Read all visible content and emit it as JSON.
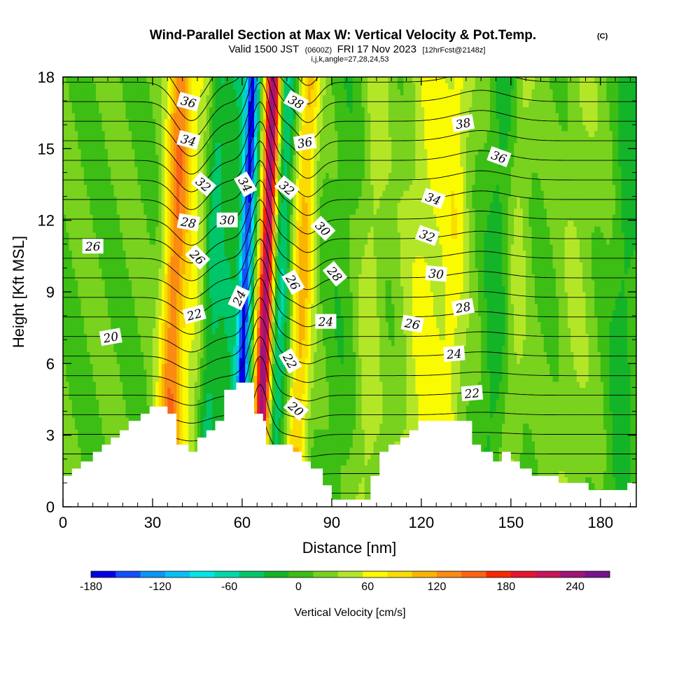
{
  "chart_data": {
    "type": "heatmap",
    "title": "Wind-Parallel Section at Max W: Vertical Velocity & Pot.Temp.",
    "title_tag": "(C)",
    "subtitle_main": "Valid 1500 JST",
    "subtitle_z": "(0600Z)",
    "subtitle_date": "FRI 17 Nov 2023",
    "subtitle_fcst": "[12hrFcst@2148z]",
    "subtitle2": "i,j,k,angle=27,28,24,53",
    "xlabel": "Distance [nm]",
    "ylabel": "Height [Kft MSL]",
    "xlim": [
      0,
      192
    ],
    "ylim": [
      0,
      18
    ],
    "xticks": [
      "0",
      "30",
      "60",
      "90",
      "120",
      "150",
      "180"
    ],
    "yticks": [
      "0",
      "3",
      "6",
      "9",
      "12",
      "15",
      "18"
    ],
    "colorbar": {
      "label": "Vertical Velocity [cm/s]",
      "min": -180,
      "max": 270,
      "step": 20,
      "ticks": [
        "-180",
        "-120",
        "-60",
        "0",
        "60",
        "120",
        "180",
        "240"
      ],
      "colors": [
        "#0000e6",
        "#1450fa",
        "#0a96f5",
        "#08c0f5",
        "#00e6e6",
        "#00d8aa",
        "#00c66a",
        "#14b428",
        "#3cbe14",
        "#78d21e",
        "#b4e628",
        "#fafa00",
        "#fadc00",
        "#fab400",
        "#fa8c14",
        "#fa6414",
        "#fa2800",
        "#e61432",
        "#c8145a",
        "#a01478",
        "#78148c"
      ]
    },
    "terrain": [
      [
        0,
        1.3
      ],
      [
        3,
        1.3
      ],
      [
        3,
        1.6
      ],
      [
        6,
        1.6
      ],
      [
        6,
        1.9
      ],
      [
        10,
        1.9
      ],
      [
        10,
        2.3
      ],
      [
        13,
        2.3
      ],
      [
        13,
        2.6
      ],
      [
        16,
        2.6
      ],
      [
        16,
        2.9
      ],
      [
        19,
        2.9
      ],
      [
        19,
        3.2
      ],
      [
        22,
        3.2
      ],
      [
        22,
        3.6
      ],
      [
        26,
        3.6
      ],
      [
        26,
        3.9
      ],
      [
        29,
        3.9
      ],
      [
        29,
        4.2
      ],
      [
        35,
        4.2
      ],
      [
        35,
        3.9
      ],
      [
        38,
        3.9
      ],
      [
        38,
        2.6
      ],
      [
        39,
        2.6
      ],
      [
        39,
        2.6
      ],
      [
        42,
        2.6
      ],
      [
        42,
        2.3
      ],
      [
        45,
        2.3
      ],
      [
        45,
        2.9
      ],
      [
        48,
        2.9
      ],
      [
        48,
        3.2
      ],
      [
        51,
        3.2
      ],
      [
        51,
        3.6
      ],
      [
        54,
        3.6
      ],
      [
        54,
        4.9
      ],
      [
        58,
        4.9
      ],
      [
        58,
        5.2
      ],
      [
        64,
        5.2
      ],
      [
        64,
        3.9
      ],
      [
        67,
        3.9
      ],
      [
        67,
        3.6
      ],
      [
        68,
        3.6
      ],
      [
        68,
        2.6
      ],
      [
        77,
        2.6
      ],
      [
        77,
        2.3
      ],
      [
        80,
        2.3
      ],
      [
        80,
        1.9
      ],
      [
        83,
        1.9
      ],
      [
        83,
        1.6
      ],
      [
        87,
        1.6
      ],
      [
        87,
        0.9
      ],
      [
        90,
        0.9
      ],
      [
        90,
        0.3
      ],
      [
        103,
        0.3
      ],
      [
        103,
        1.3
      ],
      [
        106,
        1.3
      ],
      [
        106,
        2.3
      ],
      [
        109,
        2.3
      ],
      [
        109,
        2.6
      ],
      [
        113,
        2.6
      ],
      [
        113,
        2.9
      ],
      [
        116,
        2.9
      ],
      [
        116,
        3.2
      ],
      [
        119,
        3.2
      ],
      [
        119,
        3.6
      ],
      [
        137,
        3.6
      ],
      [
        137,
        2.6
      ],
      [
        140,
        2.6
      ],
      [
        140,
        2.3
      ],
      [
        144,
        2.3
      ],
      [
        144,
        1.9
      ],
      [
        147,
        1.9
      ],
      [
        147,
        2.3
      ],
      [
        150,
        2.3
      ],
      [
        150,
        1.9
      ],
      [
        153,
        1.9
      ],
      [
        153,
        1.6
      ],
      [
        157,
        1.6
      ],
      [
        157,
        1.3
      ],
      [
        166,
        1.3
      ],
      [
        166,
        1.0
      ],
      [
        176,
        1.0
      ],
      [
        176,
        0.7
      ],
      [
        189,
        0.7
      ],
      [
        189,
        1.0
      ],
      [
        192,
        1.0
      ]
    ],
    "w_features": [
      {
        "x": 37,
        "amp": 110,
        "sigma": 2.8
      },
      {
        "x": 44,
        "amp": 40,
        "sigma": 3.5
      },
      {
        "x": 50,
        "amp": -55,
        "sigma": 2.5
      },
      {
        "x": 56,
        "amp": -30,
        "sigma": 2.0
      },
      {
        "x": 61,
        "amp": -165,
        "sigma": 1.6
      },
      {
        "x": 68,
        "amp": 215,
        "sigma": 1.8
      },
      {
        "x": 73,
        "amp": -60,
        "sigma": 2.2
      },
      {
        "x": 80,
        "amp": 85,
        "sigma": 2.6
      },
      {
        "x": 93,
        "amp": -12,
        "sigma": 4.0
      },
      {
        "x": 103,
        "amp": 30,
        "sigma": 3.0
      },
      {
        "x": 122,
        "amp": 45,
        "sigma": 6.0
      },
      {
        "x": 131,
        "amp": 35,
        "sigma": 3.0
      },
      {
        "x": 145,
        "amp": -30,
        "sigma": 3.0
      },
      {
        "x": 152,
        "amp": 25,
        "sigma": 2.5
      },
      {
        "x": 172,
        "amp": 20,
        "sigma": 4.0
      },
      {
        "x": 188,
        "amp": -30,
        "sigma": 3.0
      }
    ],
    "theta_levels": {
      "min": 16,
      "max": 40,
      "step": 1
    },
    "contour_labels": [
      {
        "text": "36",
        "x": 42,
        "y": 16.95,
        "rot": 15
      },
      {
        "text": "34",
        "x": 42,
        "y": 15.35,
        "rot": 15
      },
      {
        "text": "32",
        "x": 47,
        "y": 13.5,
        "rot": 40
      },
      {
        "text": "28",
        "x": 42,
        "y": 11.9,
        "rot": 10
      },
      {
        "text": "30",
        "x": 55,
        "y": 12.0,
        "rot": 0
      },
      {
        "text": "26",
        "x": 45,
        "y": 10.45,
        "rot": 45
      },
      {
        "text": "34",
        "x": 61,
        "y": 13.5,
        "rot": 60
      },
      {
        "text": "24",
        "x": 59,
        "y": 8.75,
        "rot": -65
      },
      {
        "text": "22",
        "x": 44,
        "y": 8.05,
        "rot": -15
      },
      {
        "text": "20",
        "x": 16,
        "y": 7.1,
        "rot": -10
      },
      {
        "text": "26",
        "x": 10,
        "y": 10.9,
        "rot": 0
      },
      {
        "text": "38",
        "x": 78,
        "y": 16.95,
        "rot": 30
      },
      {
        "text": "36",
        "x": 81,
        "y": 15.25,
        "rot": -10
      },
      {
        "text": "32",
        "x": 75,
        "y": 13.35,
        "rot": 40
      },
      {
        "text": "30",
        "x": 87,
        "y": 11.65,
        "rot": 45
      },
      {
        "text": "28",
        "x": 91,
        "y": 9.75,
        "rot": 50
      },
      {
        "text": "26",
        "x": 77,
        "y": 9.4,
        "rot": 60
      },
      {
        "text": "24",
        "x": 88,
        "y": 7.75,
        "rot": 0
      },
      {
        "text": "22",
        "x": 76,
        "y": 6.1,
        "rot": 60
      },
      {
        "text": "20",
        "x": 78,
        "y": 4.1,
        "rot": 40
      },
      {
        "text": "38",
        "x": 134,
        "y": 16.05,
        "rot": -10
      },
      {
        "text": "36",
        "x": 146,
        "y": 14.65,
        "rot": 20
      },
      {
        "text": "34",
        "x": 124,
        "y": 12.9,
        "rot": 20
      },
      {
        "text": "32",
        "x": 122,
        "y": 11.35,
        "rot": 20
      },
      {
        "text": "30",
        "x": 125,
        "y": 9.75,
        "rot": 5
      },
      {
        "text": "28",
        "x": 134,
        "y": 8.35,
        "rot": -10
      },
      {
        "text": "26",
        "x": 117,
        "y": 7.65,
        "rot": 10
      },
      {
        "text": "24",
        "x": 131,
        "y": 6.4,
        "rot": -5
      },
      {
        "text": "22",
        "x": 137,
        "y": 4.75,
        "rot": -5
      }
    ]
  }
}
